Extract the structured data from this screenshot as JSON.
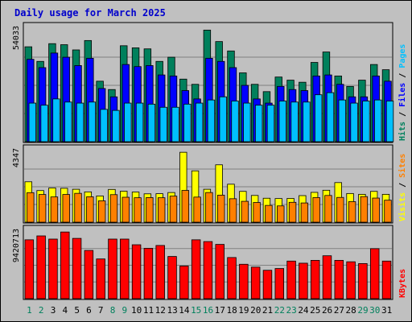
{
  "colors": {
    "background": "#C0C0C0",
    "plot_background": "#C0C0C0",
    "frame": "#000000",
    "grid": "#808080",
    "title": "#0000CC",
    "hits": "#00805C",
    "files": "#0000FF",
    "pages": "#00C0FF",
    "visits": "#FFFF00",
    "sites": "#FF8000",
    "kbytes": "#FF0000",
    "weekend_day": "#00805C",
    "weekday": "#000000"
  },
  "chart_data": {
    "title": "Daily usage for March 2025",
    "type": "bar",
    "days": [
      "1",
      "2",
      "3",
      "4",
      "5",
      "6",
      "7",
      "8",
      "9",
      "10",
      "11",
      "12",
      "13",
      "14",
      "15",
      "16",
      "17",
      "18",
      "19",
      "20",
      "21",
      "22",
      "23",
      "24",
      "25",
      "26",
      "27",
      "28",
      "29",
      "30",
      "31"
    ],
    "weekend_days": [
      "1",
      "2",
      "8",
      "9",
      "15",
      "16",
      "22",
      "23",
      "29",
      "30"
    ],
    "panels": [
      {
        "name": "hits-files-pages",
        "scale_label": "54033",
        "ymax": 54033,
        "series": [
          {
            "name": "Hits",
            "color_key": "hits",
            "values": [
              45500,
              38500,
              47000,
              46500,
              44000,
              48500,
              29000,
              25000,
              46000,
              45000,
              44500,
              38500,
              40500,
              30000,
              27500,
              53500,
              48000,
              43500,
              33000,
              27500,
              24000,
              31000,
              29500,
              28500,
              38000,
              43000,
              31500,
              26500,
              29500,
              37000,
              34500
            ]
          },
          {
            "name": "Files",
            "color_key": "files",
            "values": [
              39500,
              35500,
              42500,
              40500,
              36500,
              40000,
              25500,
              21500,
              37000,
              36000,
              36500,
              32000,
              31500,
              24500,
              20500,
              40000,
              38500,
              35500,
              27000,
              20500,
              18500,
              26500,
              25000,
              24500,
              31500,
              32000,
              27500,
              21500,
              21500,
              31500,
              29000
            ]
          },
          {
            "name": "Pages",
            "color_key": "pages",
            "values": [
              18500,
              17500,
              20500,
              19000,
              18500,
              19000,
              15500,
              15000,
              18500,
              18500,
              18000,
              16500,
              16500,
              18000,
              18500,
              20000,
              21500,
              19500,
              18500,
              17500,
              17500,
              19500,
              19000,
              19000,
              22500,
              23500,
              20000,
              18500,
              19500,
              20000,
              19500
            ]
          }
        ],
        "legend": [
          {
            "text": "Hits",
            "color_key": "hits"
          },
          {
            "text": " / ",
            "color_key": "weekday"
          },
          {
            "text": "Files",
            "color_key": "files"
          },
          {
            "text": " / ",
            "color_key": "weekday"
          },
          {
            "text": "Pages",
            "color_key": "pages"
          }
        ]
      },
      {
        "name": "visits-sites",
        "scale_label": "4347",
        "ymax": 4347,
        "series": [
          {
            "name": "Visits",
            "color_key": "visits",
            "values": [
              2480,
              1940,
              2100,
              2080,
              2020,
              1860,
              1610,
              2010,
              1900,
              1850,
              1740,
              1750,
              1820,
              4290,
              3150,
              2020,
              3520,
              2330,
              1890,
              1640,
              1470,
              1450,
              1460,
              1630,
              1830,
              1960,
              2430,
              1760,
              1710,
              1890,
              1710
            ]
          },
          {
            "name": "Sites",
            "color_key": "sites",
            "values": [
              1810,
              1700,
              1550,
              1700,
              1770,
              1560,
              1310,
              1690,
              1530,
              1500,
              1510,
              1500,
              1600,
              1950,
              1540,
              1820,
              1660,
              1440,
              1280,
              1210,
              1030,
              1000,
              1220,
              1180,
              1510,
              1640,
              1520,
              1260,
              1570,
              1480,
              1350
            ]
          }
        ],
        "legend": [
          {
            "text": "Visits",
            "color_key": "visits"
          },
          {
            "text": " / ",
            "color_key": "weekday"
          },
          {
            "text": "Sites",
            "color_key": "sites"
          }
        ]
      },
      {
        "name": "kbytes",
        "scale_label": "9420713",
        "ymax": 9420713,
        "series": [
          {
            "name": "KBytes",
            "color_key": "kbytes",
            "values": [
              8300000,
              8850000,
              8400000,
              9400000,
              8500000,
              6800000,
              5600000,
              8400000,
              8400000,
              7600000,
              7100000,
              7500000,
              5950000,
              4600000,
              8300000,
              8050000,
              7650000,
              5800000,
              4850000,
              4450000,
              4000000,
              4250000,
              5300000,
              5000000,
              5400000,
              6050000,
              5400000,
              5200000,
              4950000,
              7050000,
              5300000
            ]
          }
        ],
        "legend": [
          {
            "text": "KBytes",
            "color_key": "kbytes"
          }
        ]
      }
    ]
  }
}
